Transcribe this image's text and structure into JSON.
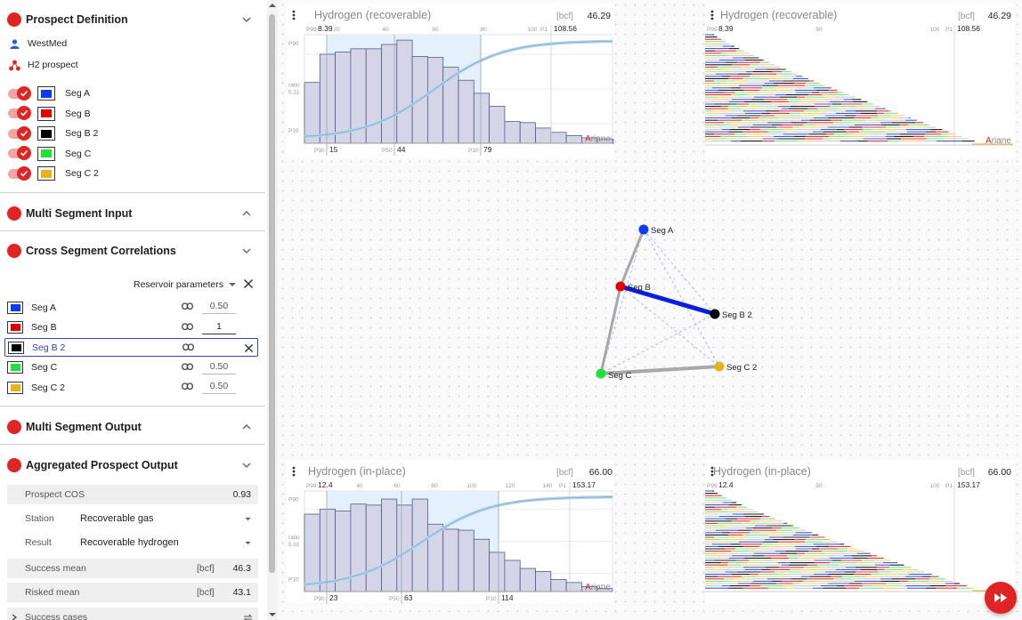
{
  "prospect_definition": {
    "title": "Prospect Definition",
    "user": "WestMed",
    "prospect": "H2 prospect",
    "segments": [
      {
        "name": "Seg A",
        "color": "#0b3cf2",
        "enabled": true
      },
      {
        "name": "Seg B",
        "color": "#e00000",
        "enabled": true
      },
      {
        "name": "Seg B 2",
        "color": "#000000",
        "enabled": true
      },
      {
        "name": "Seg C",
        "color": "#22e03a",
        "enabled": true
      },
      {
        "name": "Seg C 2",
        "color": "#e8b21e",
        "enabled": true
      }
    ]
  },
  "multi_segment_input": {
    "title": "Multi Segment Input"
  },
  "cross_segment": {
    "title": "Cross Segment Correlations",
    "param_select": "Reservoir parameters",
    "rows": [
      {
        "name": "Seg A",
        "color": "#0b3cf2",
        "value": "0.50",
        "selected": false
      },
      {
        "name": "Seg B",
        "color": "#e00000",
        "value": "1",
        "selected": false
      },
      {
        "name": "Seg B 2",
        "color": "#000000",
        "value": "",
        "selected": true
      },
      {
        "name": "Seg C",
        "color": "#22e03a",
        "value": "0.50",
        "selected": false
      },
      {
        "name": "Seg C 2",
        "color": "#e8b21e",
        "value": "0.50",
        "selected": false
      }
    ]
  },
  "multi_segment_output": {
    "title": "Multi Segment Output"
  },
  "aggregated": {
    "title": "Aggregated Prospect Output",
    "cos_label": "Prospect COS",
    "cos_value": "0.93",
    "station_label": "Station",
    "station_value": "Recoverable gas",
    "result_label": "Result",
    "result_value": "Recoverable hydrogen",
    "success_mean_label": "Success mean",
    "success_mean_unit": "[bcf]",
    "success_mean_value": "46.3",
    "risked_mean_label": "Risked mean",
    "risked_mean_unit": "[bcf]",
    "risked_mean_value": "43.1",
    "success_cases_label": "Success cases"
  },
  "cards": {
    "rec_hist": {
      "title": "Hydrogen (recoverable)",
      "unit": "[bcf]",
      "value": "46.29",
      "top_p99": "P99",
      "top_p99_val": "8.39",
      "top_p1": "P1",
      "top_p1_val": "108.56",
      "ticks": [
        "20",
        "40",
        "60",
        "80",
        "100"
      ],
      "left_p90": "P90",
      "left_ratio": "ratio",
      "left_ratio_val": "5.11",
      "left_p10": "P10",
      "bot_p90": "P90",
      "bot_p90_val": "15",
      "bot_p50": "P50",
      "bot_p50_val": "44",
      "bot_p10": "P10",
      "bot_p10_val": "79",
      "brand": "Ariane"
    },
    "rec_lines": {
      "title": "Hydrogen (recoverable)",
      "unit": "[bcf]",
      "value": "46.29",
      "top_p99": "P99",
      "top_p99_val": "8.39",
      "mid_tick": "50",
      "tick_100": "100",
      "top_p1": "P1",
      "top_p1_val": "108.56",
      "brand": "Ariane"
    },
    "inp_hist": {
      "title": "Hydrogen (in-place)",
      "unit": "[bcf]",
      "value": "66.00",
      "top_p99": "P99",
      "top_p99_val": "12.4",
      "top_p1": "P1",
      "top_p1_val": "153.17",
      "ticks": [
        "40",
        "60",
        "80",
        "100",
        "120",
        "140"
      ],
      "left_p90": "P90",
      "left_ratio": "ratio",
      "left_ratio_val": "5.01",
      "left_p10": "P10",
      "bot_p90": "P90",
      "bot_p90_val": "23",
      "bot_p50": "P50",
      "bot_p50_val": "63",
      "bot_p10": "P10",
      "bot_p10_val": "114",
      "brand": "Ariane"
    },
    "inp_lines": {
      "title": "Hydrogen (in-place)",
      "unit": "[bcf]",
      "value": "66.00",
      "top_p99": "P99",
      "top_p99_val": "12.4",
      "mid_tick": "50",
      "tick_100": "100",
      "top_p1": "P1",
      "top_p1_val": "153.17"
    }
  },
  "network": {
    "nodes": [
      {
        "name": "Seg A",
        "color": "#0b3cf2"
      },
      {
        "name": "Seg B",
        "color": "#e00000"
      },
      {
        "name": "Seg B 2",
        "color": "#000000"
      },
      {
        "name": "Seg C",
        "color": "#22e03a"
      },
      {
        "name": "Seg C 2",
        "color": "#e8b21e"
      }
    ]
  },
  "chart_data": [
    {
      "type": "bar",
      "title": "Hydrogen (recoverable)",
      "values": [
        0.56,
        0.82,
        0.84,
        0.87,
        0.87,
        0.91,
        0.95,
        0.8,
        0.79,
        0.7,
        0.58,
        0.46,
        0.34,
        0.2,
        0.19,
        0.14,
        0.1,
        0.07,
        0.05,
        0.04,
        0.03
      ]
    },
    {
      "type": "bar",
      "title": "Hydrogen (in-place)",
      "values": [
        0.77,
        0.82,
        0.8,
        0.87,
        0.86,
        0.92,
        0.86,
        0.92,
        0.67,
        0.62,
        0.61,
        0.52,
        0.39,
        0.31,
        0.23,
        0.2,
        0.12,
        0.09,
        0.05,
        0.03
      ]
    }
  ]
}
